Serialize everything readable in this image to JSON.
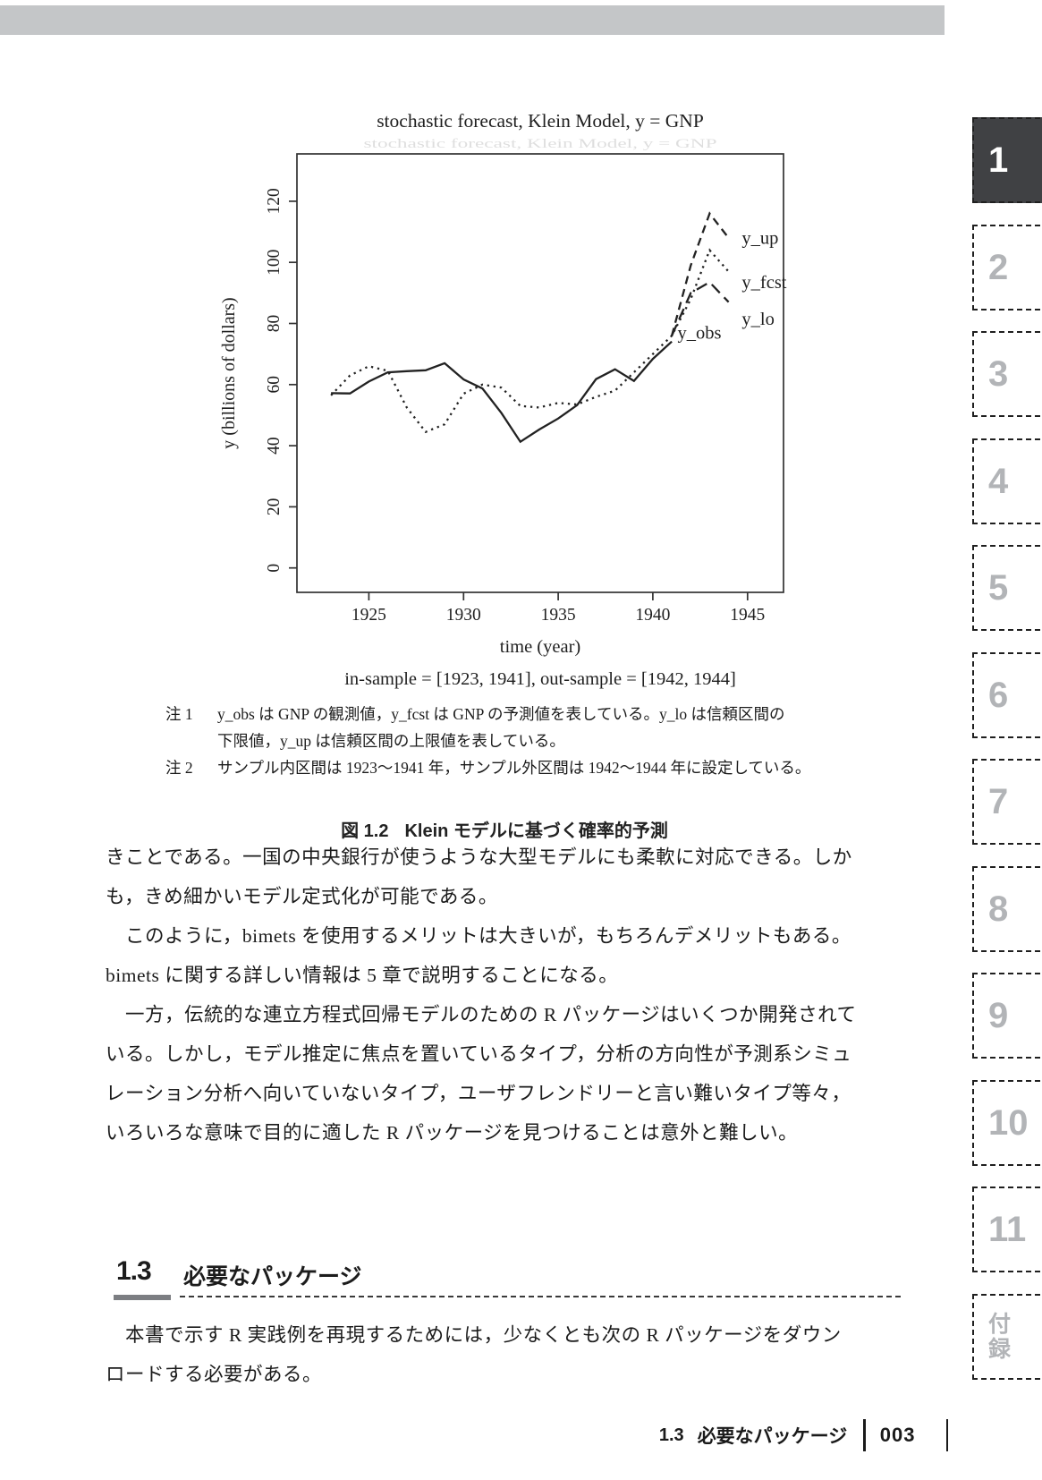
{
  "figure": {
    "caption_label": "図 1.2",
    "caption_title": "Klein モデルに基づく確率的予測",
    "notes": [
      {
        "marker": "注 1",
        "indent": false,
        "text": "y_obs は GNP の観測値，y_fcst は GNP の予測値を表している。y_lo は信頼区間の"
      },
      {
        "marker": "",
        "indent": true,
        "text": "下限値，y_up は信頼区間の上限値を表している。"
      },
      {
        "marker": "注 2",
        "indent": false,
        "text": "サンプル内区間は 1923～1941 年，サンプル外区間は 1942～1944 年に設定している。"
      }
    ]
  },
  "chart_data": {
    "type": "line",
    "title": "stochastic forecast, Klein Model, y = GNP",
    "xlabel": "time (year)",
    "sub_xlabel": "in-sample = [1923, 1941], out-sample = [1942, 1944]",
    "ylabel": "y (billions of dollars)",
    "xlim": [
      1921.2,
      1946.9
    ],
    "ylim": [
      -8,
      135.5
    ],
    "x_ticks": [
      1925,
      1930,
      1935,
      1940,
      1945
    ],
    "y_ticks": [
      0,
      20,
      40,
      60,
      80,
      100,
      120
    ],
    "grid": false,
    "line_color": "#222222",
    "series": [
      {
        "name": "y_obs",
        "style": "solid",
        "x": [
          1923,
          1924,
          1925,
          1926,
          1927,
          1928,
          1929,
          1930,
          1931,
          1932,
          1933,
          1934,
          1935,
          1936,
          1937,
          1938,
          1939,
          1940,
          1941
        ],
        "values": [
          57.2,
          57.1,
          61.0,
          64.0,
          64.4,
          64.7,
          67.0,
          61.7,
          58.7,
          50.7,
          41.3,
          45.3,
          48.9,
          53.3,
          61.8,
          65.0,
          61.2,
          68.4,
          74.1
        ]
      },
      {
        "name": "y_fcst",
        "style": "dotted",
        "x": [
          1923,
          1924,
          1925,
          1926,
          1927,
          1928,
          1929,
          1930,
          1931,
          1932,
          1933,
          1934,
          1935,
          1936,
          1937,
          1938,
          1939,
          1940,
          1941,
          1942,
          1943,
          1944
        ],
        "values": [
          56.5,
          63.0,
          66.0,
          64.5,
          52.5,
          44.5,
          47.0,
          57.0,
          60.0,
          59.0,
          53.0,
          52.5,
          54.0,
          53.5,
          56.0,
          58.0,
          64.0,
          70.0,
          76.0,
          88.0,
          104.0,
          97.0
        ]
      },
      {
        "name": "y_up",
        "style": "dashed",
        "x": [
          1941,
          1942,
          1943,
          1944
        ],
        "values": [
          76.0,
          99.0,
          116.0,
          108.0
        ]
      },
      {
        "name": "y_lo",
        "style": "longdash",
        "x": [
          1941,
          1942,
          1943,
          1944
        ],
        "values": [
          76.0,
          90.0,
          93.5,
          87.0
        ]
      }
    ],
    "line_labels": [
      {
        "text": "y_up",
        "x": 1944.7,
        "y": 106.0
      },
      {
        "text": "y_fcst",
        "x": 1944.7,
        "y": 91.5
      },
      {
        "text": "y_lo",
        "x": 1944.7,
        "y": 79.5
      },
      {
        "text": "y_obs",
        "x": 1941.3,
        "y": 75.0
      }
    ],
    "legend_position": "line-end-labels"
  },
  "body_text_1": {
    "lines": [
      "きことである。一国の中央銀行が使うような大型モデルにも柔軟に対応できる。しか",
      "も，きめ細かいモデル定式化が可能である。",
      "　このように，bimets を使用するメリットは大きいが，もちろんデメリットもある。",
      "bimets に関する詳しい情報は 5 章で説明することになる。",
      "　一方，伝統的な連立方程式回帰モデルのための R パッケージはいくつか開発されて",
      "いる。しかし，モデル推定に焦点を置いているタイプ，分析の方向性が予測系シミュ",
      "レーション分析へ向いていないタイプ，ユーザフレンドリーと言い難いタイプ等々，",
      "いろいろな意味で目的に適した R パッケージを見つけることは意外と難しい。"
    ]
  },
  "section": {
    "number": "1.3",
    "title": "必要なパッケージ"
  },
  "body_text_2": {
    "lines": [
      "　本書で示す R 実践例を再現するためには，少なくとも次の R パッケージをダウン",
      "ロードする必要がある。"
    ]
  },
  "footer": {
    "section_number": "1.3",
    "section_title": "必要なパッケージ",
    "page_number": "003"
  },
  "sidebar": {
    "tabs": [
      {
        "label": "1",
        "active": true,
        "stacked": false
      },
      {
        "label": "2",
        "active": false,
        "stacked": false
      },
      {
        "label": "3",
        "active": false,
        "stacked": false
      },
      {
        "label": "4",
        "active": false,
        "stacked": false
      },
      {
        "label": "5",
        "active": false,
        "stacked": false
      },
      {
        "label": "6",
        "active": false,
        "stacked": false
      },
      {
        "label": "7",
        "active": false,
        "stacked": false
      },
      {
        "label": "8",
        "active": false,
        "stacked": false
      },
      {
        "label": "9",
        "active": false,
        "stacked": false
      },
      {
        "label": "10",
        "active": false,
        "stacked": false
      },
      {
        "label": "11",
        "active": false,
        "stacked": false
      },
      {
        "label": "付録",
        "active": false,
        "stacked": true
      }
    ]
  },
  "colors": {
    "top_bar": "#c4c6c8",
    "active_tab_bg": "#404144",
    "inactive_tab_number": "#b2b4b7",
    "text": "#1b1b1b",
    "section_underline": "#7c7e82"
  }
}
